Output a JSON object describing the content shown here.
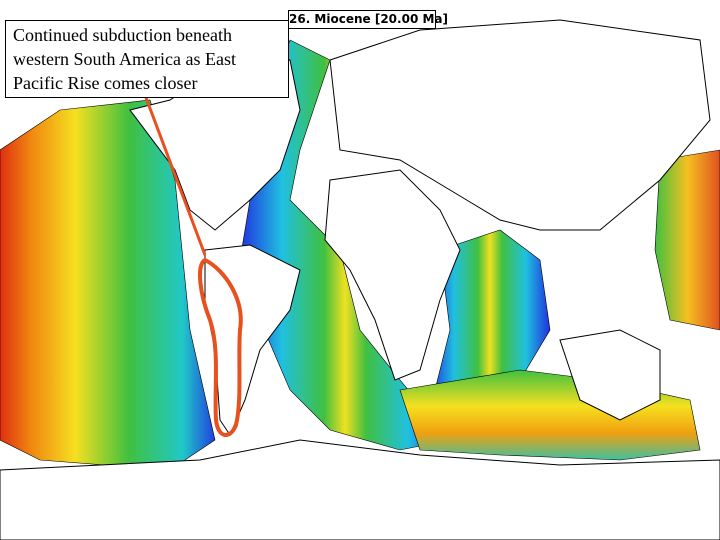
{
  "map_label": "26. Miocene [20.00 Ma]",
  "caption": {
    "lines": [
      "Continued subduction beneath",
      "western South America as East",
      "Pacific Rise comes closer"
    ]
  }
}
